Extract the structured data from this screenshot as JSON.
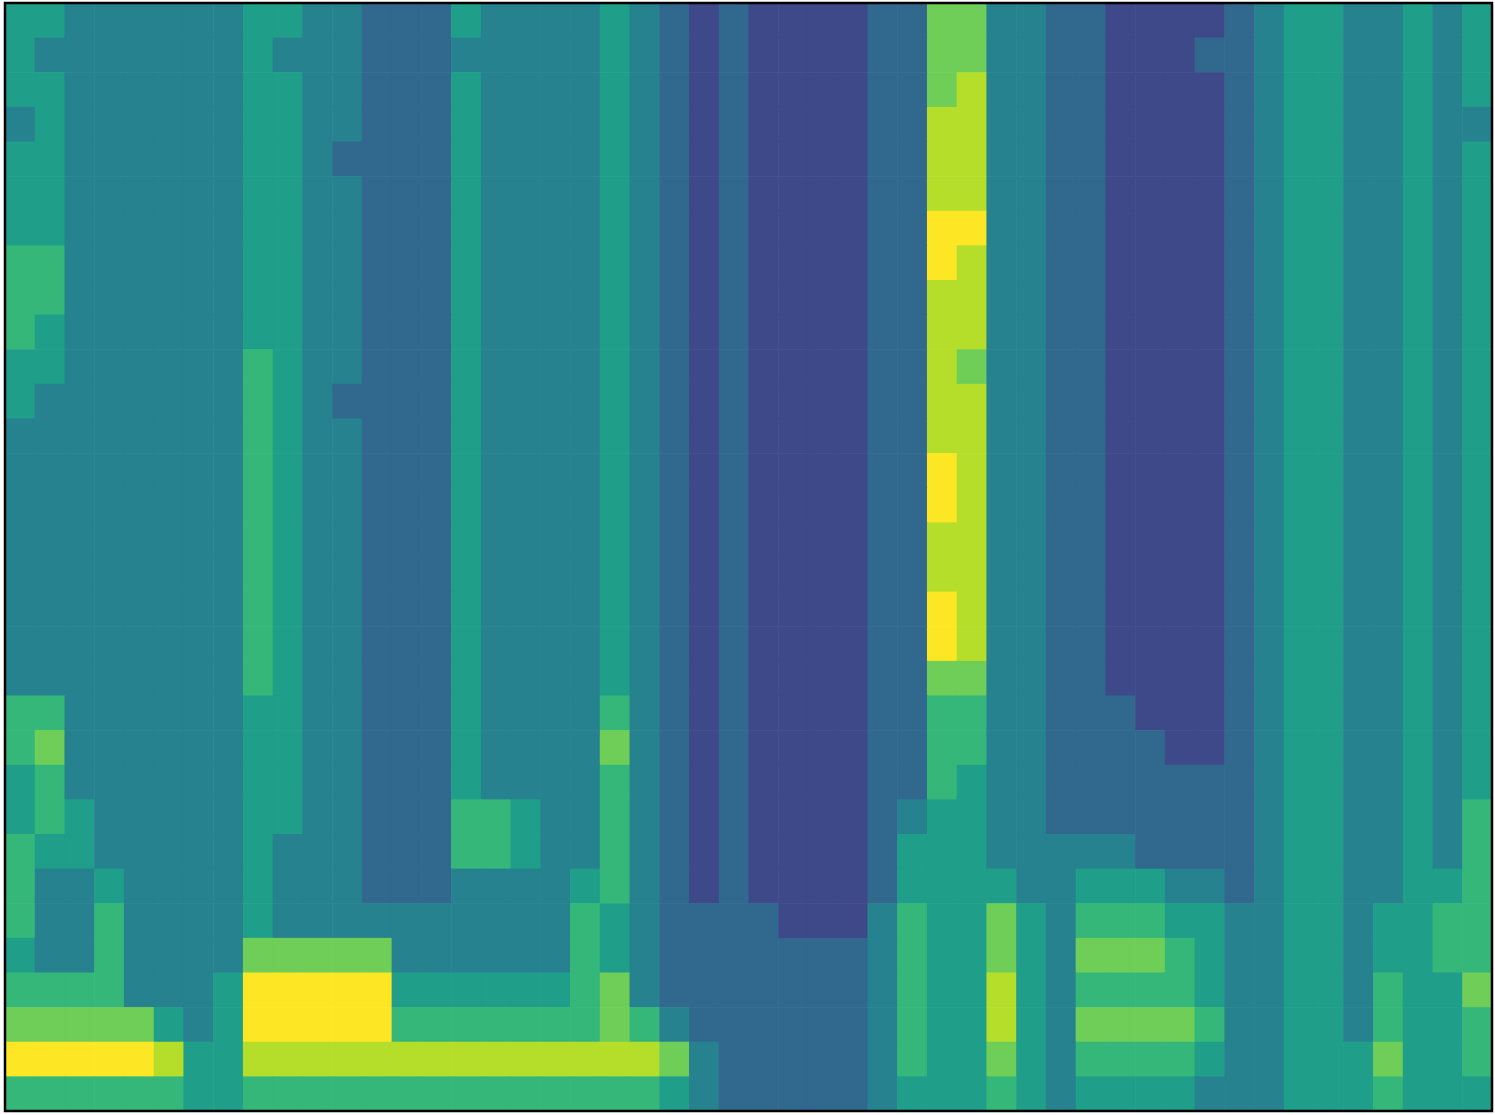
{
  "chart_data": {
    "type": "heatmap",
    "color": "viridis",
    "tick_labels": false,
    "zlim": [
      0,
      9
    ],
    "z": [
      [
        5,
        5,
        4,
        4,
        4,
        4,
        4,
        4,
        5,
        5,
        4,
        4,
        3,
        3,
        3,
        5,
        4,
        4,
        4,
        4,
        5,
        4,
        3,
        2,
        3,
        2,
        2,
        2,
        2,
        3,
        3,
        7,
        7,
        4,
        4,
        3,
        3,
        2,
        2,
        2,
        2,
        3,
        4,
        5,
        5,
        4,
        4,
        5,
        4,
        5
      ],
      [
        5,
        4,
        4,
        4,
        4,
        4,
        4,
        4,
        5,
        4,
        4,
        4,
        3,
        3,
        3,
        4,
        4,
        4,
        4,
        4,
        5,
        4,
        3,
        2,
        3,
        2,
        2,
        2,
        2,
        3,
        3,
        7,
        7,
        4,
        4,
        3,
        3,
        2,
        2,
        2,
        3,
        3,
        4,
        5,
        5,
        4,
        4,
        5,
        4,
        5
      ],
      [
        5,
        5,
        4,
        4,
        4,
        4,
        4,
        4,
        5,
        5,
        4,
        4,
        3,
        3,
        3,
        5,
        4,
        4,
        4,
        4,
        5,
        4,
        3,
        2,
        3,
        2,
        2,
        2,
        2,
        3,
        3,
        7,
        8,
        4,
        4,
        3,
        3,
        2,
        2,
        2,
        2,
        3,
        4,
        5,
        5,
        4,
        4,
        5,
        4,
        5
      ],
      [
        4,
        5,
        4,
        4,
        4,
        4,
        4,
        4,
        5,
        5,
        4,
        4,
        3,
        3,
        3,
        5,
        4,
        4,
        4,
        4,
        5,
        4,
        3,
        2,
        3,
        2,
        2,
        2,
        2,
        3,
        3,
        8,
        8,
        4,
        4,
        3,
        3,
        2,
        2,
        2,
        2,
        3,
        4,
        5,
        5,
        4,
        4,
        5,
        4,
        4
      ],
      [
        5,
        5,
        4,
        4,
        4,
        4,
        4,
        4,
        5,
        5,
        4,
        3,
        3,
        3,
        3,
        5,
        4,
        4,
        4,
        4,
        5,
        4,
        3,
        2,
        3,
        2,
        2,
        2,
        2,
        3,
        3,
        8,
        8,
        4,
        4,
        3,
        3,
        2,
        2,
        2,
        2,
        3,
        4,
        5,
        5,
        4,
        4,
        5,
        4,
        5
      ],
      [
        5,
        5,
        4,
        4,
        4,
        4,
        4,
        4,
        5,
        5,
        4,
        4,
        3,
        3,
        3,
        5,
        4,
        4,
        4,
        4,
        5,
        4,
        3,
        2,
        3,
        2,
        2,
        2,
        2,
        3,
        3,
        8,
        8,
        4,
        4,
        3,
        3,
        2,
        2,
        2,
        2,
        3,
        4,
        5,
        5,
        4,
        4,
        5,
        4,
        5
      ],
      [
        5,
        5,
        4,
        4,
        4,
        4,
        4,
        4,
        5,
        5,
        4,
        4,
        3,
        3,
        3,
        5,
        4,
        4,
        4,
        4,
        5,
        4,
        3,
        2,
        3,
        2,
        2,
        2,
        2,
        3,
        3,
        9,
        9,
        4,
        4,
        3,
        3,
        2,
        2,
        2,
        2,
        3,
        4,
        5,
        5,
        4,
        4,
        5,
        4,
        5
      ],
      [
        6,
        6,
        4,
        4,
        4,
        4,
        4,
        4,
        5,
        5,
        4,
        4,
        3,
        3,
        3,
        5,
        4,
        4,
        4,
        4,
        5,
        4,
        3,
        2,
        3,
        2,
        2,
        2,
        2,
        3,
        3,
        9,
        8,
        4,
        4,
        3,
        3,
        2,
        2,
        2,
        2,
        3,
        4,
        5,
        5,
        4,
        4,
        5,
        4,
        5
      ],
      [
        6,
        6,
        4,
        4,
        4,
        4,
        4,
        4,
        5,
        5,
        4,
        4,
        3,
        3,
        3,
        5,
        4,
        4,
        4,
        4,
        5,
        4,
        3,
        2,
        3,
        2,
        2,
        2,
        2,
        3,
        3,
        8,
        8,
        4,
        4,
        3,
        3,
        2,
        2,
        2,
        2,
        3,
        4,
        5,
        5,
        4,
        4,
        5,
        4,
        5
      ],
      [
        6,
        5,
        4,
        4,
        4,
        4,
        4,
        4,
        5,
        5,
        4,
        4,
        3,
        3,
        3,
        5,
        4,
        4,
        4,
        4,
        5,
        4,
        3,
        2,
        3,
        2,
        2,
        2,
        2,
        3,
        3,
        8,
        8,
        4,
        4,
        3,
        3,
        2,
        2,
        2,
        2,
        3,
        4,
        5,
        5,
        4,
        4,
        5,
        4,
        5
      ],
      [
        5,
        5,
        4,
        4,
        4,
        4,
        4,
        4,
        6,
        5,
        4,
        4,
        3,
        3,
        3,
        5,
        4,
        4,
        4,
        4,
        5,
        4,
        3,
        2,
        3,
        2,
        2,
        2,
        2,
        3,
        3,
        8,
        7,
        4,
        4,
        3,
        3,
        2,
        2,
        2,
        2,
        3,
        4,
        5,
        5,
        4,
        4,
        5,
        4,
        5
      ],
      [
        5,
        4,
        4,
        4,
        4,
        4,
        4,
        4,
        6,
        5,
        4,
        3,
        3,
        3,
        3,
        5,
        4,
        4,
        4,
        4,
        5,
        4,
        3,
        2,
        3,
        2,
        2,
        2,
        2,
        3,
        3,
        8,
        8,
        4,
        4,
        3,
        3,
        2,
        2,
        2,
        2,
        3,
        4,
        5,
        5,
        4,
        4,
        5,
        4,
        5
      ],
      [
        4,
        4,
        4,
        4,
        4,
        4,
        4,
        4,
        6,
        5,
        4,
        4,
        3,
        3,
        3,
        5,
        4,
        4,
        4,
        4,
        5,
        4,
        3,
        2,
        3,
        2,
        2,
        2,
        2,
        3,
        3,
        8,
        8,
        4,
        4,
        3,
        3,
        2,
        2,
        2,
        2,
        3,
        4,
        5,
        5,
        4,
        4,
        5,
        4,
        5
      ],
      [
        4,
        4,
        4,
        4,
        4,
        4,
        4,
        4,
        6,
        5,
        4,
        4,
        3,
        3,
        3,
        5,
        4,
        4,
        4,
        4,
        5,
        4,
        3,
        2,
        3,
        2,
        2,
        2,
        2,
        3,
        3,
        9,
        8,
        4,
        4,
        3,
        3,
        2,
        2,
        2,
        2,
        3,
        4,
        5,
        5,
        4,
        4,
        5,
        4,
        5
      ],
      [
        4,
        4,
        4,
        4,
        4,
        4,
        4,
        4,
        6,
        5,
        4,
        4,
        3,
        3,
        3,
        5,
        4,
        4,
        4,
        4,
        5,
        4,
        3,
        2,
        3,
        2,
        2,
        2,
        2,
        3,
        3,
        9,
        8,
        4,
        4,
        3,
        3,
        2,
        2,
        2,
        2,
        3,
        4,
        5,
        5,
        4,
        4,
        5,
        4,
        5
      ],
      [
        4,
        4,
        4,
        4,
        4,
        4,
        4,
        4,
        6,
        5,
        4,
        4,
        3,
        3,
        3,
        5,
        4,
        4,
        4,
        4,
        5,
        4,
        3,
        2,
        3,
        2,
        2,
        2,
        2,
        3,
        3,
        8,
        8,
        4,
        4,
        3,
        3,
        2,
        2,
        2,
        2,
        3,
        4,
        5,
        5,
        4,
        4,
        5,
        4,
        5
      ],
      [
        4,
        4,
        4,
        4,
        4,
        4,
        4,
        4,
        6,
        5,
        4,
        4,
        3,
        3,
        3,
        5,
        4,
        4,
        4,
        4,
        5,
        4,
        3,
        2,
        3,
        2,
        2,
        2,
        2,
        3,
        3,
        8,
        8,
        4,
        4,
        3,
        3,
        2,
        2,
        2,
        2,
        3,
        4,
        5,
        5,
        4,
        4,
        5,
        4,
        5
      ],
      [
        4,
        4,
        4,
        4,
        4,
        4,
        4,
        4,
        6,
        5,
        4,
        4,
        3,
        3,
        3,
        5,
        4,
        4,
        4,
        4,
        5,
        4,
        3,
        2,
        3,
        2,
        2,
        2,
        2,
        3,
        3,
        9,
        8,
        4,
        4,
        3,
        3,
        2,
        2,
        2,
        2,
        3,
        4,
        5,
        5,
        4,
        4,
        5,
        4,
        5
      ],
      [
        4,
        4,
        4,
        4,
        4,
        4,
        4,
        4,
        6,
        5,
        4,
        4,
        3,
        3,
        3,
        5,
        4,
        4,
        4,
        4,
        5,
        4,
        3,
        2,
        3,
        2,
        2,
        2,
        2,
        3,
        3,
        9,
        8,
        4,
        4,
        3,
        3,
        2,
        2,
        2,
        2,
        3,
        4,
        5,
        5,
        4,
        4,
        5,
        4,
        5
      ],
      [
        4,
        4,
        4,
        4,
        4,
        4,
        4,
        4,
        6,
        5,
        4,
        4,
        3,
        3,
        3,
        5,
        4,
        4,
        4,
        4,
        5,
        4,
        3,
        2,
        3,
        2,
        2,
        2,
        2,
        3,
        3,
        7,
        7,
        4,
        4,
        3,
        3,
        2,
        2,
        2,
        2,
        3,
        4,
        5,
        5,
        4,
        4,
        5,
        4,
        5
      ],
      [
        6,
        6,
        4,
        4,
        4,
        4,
        4,
        4,
        5,
        5,
        4,
        4,
        3,
        3,
        3,
        5,
        4,
        4,
        4,
        4,
        6,
        4,
        3,
        2,
        3,
        2,
        2,
        2,
        2,
        3,
        3,
        6,
        6,
        4,
        4,
        3,
        3,
        3,
        2,
        2,
        2,
        3,
        4,
        5,
        5,
        4,
        4,
        5,
        4,
        5
      ],
      [
        6,
        7,
        4,
        4,
        4,
        4,
        4,
        4,
        5,
        5,
        4,
        4,
        3,
        3,
        3,
        5,
        4,
        4,
        4,
        4,
        7,
        4,
        3,
        2,
        3,
        2,
        2,
        2,
        2,
        3,
        3,
        6,
        6,
        4,
        4,
        3,
        3,
        3,
        3,
        2,
        2,
        3,
        4,
        5,
        5,
        4,
        4,
        5,
        4,
        5
      ],
      [
        5,
        6,
        4,
        4,
        4,
        4,
        4,
        4,
        5,
        5,
        4,
        4,
        3,
        3,
        3,
        5,
        4,
        4,
        4,
        4,
        6,
        4,
        3,
        2,
        3,
        2,
        2,
        2,
        2,
        3,
        3,
        6,
        5,
        4,
        4,
        3,
        3,
        3,
        3,
        3,
        3,
        3,
        4,
        5,
        5,
        4,
        4,
        5,
        4,
        5
      ],
      [
        5,
        6,
        5,
        4,
        4,
        4,
        4,
        4,
        5,
        5,
        4,
        4,
        3,
        3,
        3,
        6,
        6,
        5,
        4,
        4,
        6,
        4,
        3,
        2,
        3,
        2,
        2,
        2,
        2,
        3,
        4,
        5,
        5,
        4,
        4,
        3,
        3,
        3,
        3,
        3,
        3,
        3,
        4,
        5,
        5,
        4,
        4,
        5,
        4,
        6
      ],
      [
        6,
        5,
        5,
        4,
        4,
        4,
        4,
        4,
        5,
        4,
        4,
        4,
        3,
        3,
        3,
        6,
        6,
        5,
        4,
        4,
        6,
        4,
        3,
        2,
        3,
        2,
        2,
        2,
        2,
        3,
        5,
        5,
        5,
        4,
        4,
        4,
        4,
        4,
        3,
        3,
        3,
        3,
        4,
        5,
        5,
        4,
        4,
        5,
        4,
        6
      ],
      [
        6,
        4,
        4,
        5,
        4,
        4,
        4,
        4,
        5,
        4,
        4,
        4,
        3,
        3,
        3,
        4,
        4,
        4,
        4,
        5,
        6,
        4,
        3,
        2,
        3,
        2,
        2,
        2,
        2,
        3,
        5,
        5,
        5,
        5,
        4,
        4,
        5,
        5,
        5,
        4,
        4,
        3,
        4,
        5,
        5,
        4,
        4,
        5,
        5,
        6
      ],
      [
        6,
        4,
        4,
        6,
        4,
        4,
        4,
        4,
        5,
        4,
        4,
        4,
        4,
        4,
        4,
        4,
        4,
        4,
        4,
        6,
        5,
        4,
        3,
        3,
        3,
        3,
        2,
        2,
        2,
        4,
        6,
        5,
        5,
        7,
        5,
        4,
        6,
        6,
        6,
        5,
        5,
        4,
        4,
        5,
        5,
        4,
        5,
        5,
        6,
        6
      ],
      [
        5,
        4,
        4,
        6,
        4,
        4,
        4,
        4,
        7,
        7,
        7,
        7,
        7,
        4,
        4,
        4,
        4,
        4,
        4,
        6,
        5,
        4,
        3,
        3,
        3,
        3,
        3,
        3,
        3,
        4,
        6,
        5,
        5,
        7,
        5,
        4,
        7,
        7,
        7,
        6,
        5,
        4,
        4,
        5,
        5,
        4,
        5,
        5,
        6,
        6
      ],
      [
        6,
        6,
        6,
        6,
        4,
        4,
        4,
        5,
        9,
        9,
        9,
        9,
        9,
        5,
        5,
        5,
        5,
        5,
        5,
        6,
        7,
        4,
        3,
        3,
        3,
        3,
        3,
        3,
        3,
        4,
        6,
        5,
        5,
        8,
        5,
        4,
        6,
        6,
        6,
        6,
        5,
        4,
        4,
        5,
        5,
        4,
        6,
        5,
        5,
        7
      ],
      [
        7,
        7,
        7,
        7,
        7,
        5,
        4,
        5,
        9,
        9,
        9,
        9,
        9,
        6,
        6,
        6,
        6,
        6,
        6,
        6,
        7,
        6,
        4,
        3,
        3,
        3,
        3,
        3,
        3,
        4,
        6,
        5,
        5,
        8,
        5,
        4,
        7,
        7,
        7,
        7,
        6,
        4,
        4,
        5,
        5,
        4,
        6,
        5,
        5,
        6
      ],
      [
        9,
        9,
        9,
        9,
        9,
        8,
        5,
        5,
        8,
        8,
        8,
        8,
        8,
        8,
        8,
        8,
        8,
        8,
        8,
        8,
        8,
        8,
        7,
        4,
        3,
        3,
        3,
        3,
        3,
        4,
        6,
        5,
        5,
        7,
        5,
        4,
        6,
        6,
        6,
        6,
        5,
        4,
        4,
        5,
        5,
        5,
        7,
        5,
        5,
        6
      ],
      [
        6,
        6,
        6,
        6,
        6,
        6,
        5,
        5,
        6,
        6,
        6,
        6,
        6,
        6,
        6,
        6,
        6,
        6,
        6,
        6,
        6,
        6,
        5,
        4,
        3,
        3,
        3,
        3,
        3,
        4,
        5,
        5,
        5,
        6,
        5,
        4,
        5,
        5,
        5,
        5,
        4,
        4,
        4,
        5,
        5,
        5,
        6,
        5,
        5,
        5
      ]
    ]
  }
}
